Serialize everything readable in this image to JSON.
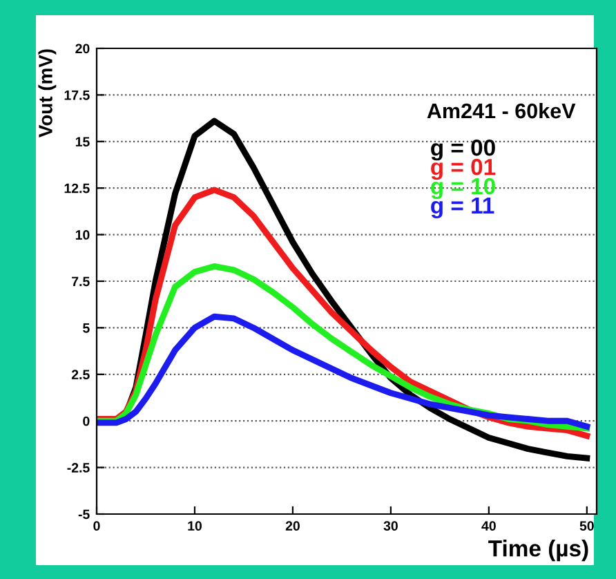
{
  "chart_data": {
    "type": "line",
    "xlabel": "Time (µs)",
    "ylabel": "Vout (mV)",
    "annotations": [
      "Am241 - 60keV"
    ],
    "x": [
      0,
      2,
      3,
      4,
      5,
      6,
      8,
      10,
      12,
      14,
      16,
      18,
      20,
      22,
      24,
      26,
      28,
      30,
      32,
      34,
      36,
      38,
      40,
      42,
      44,
      46,
      48,
      50
    ],
    "series": [
      {
        "name": "g = 00",
        "color": "#000000",
        "values": [
          0,
          0,
          0.4,
          1.8,
          4.6,
          7.5,
          12.2,
          15.3,
          16.1,
          15.4,
          13.6,
          11.6,
          9.6,
          7.9,
          6.4,
          5.0,
          3.6,
          2.3,
          1.4,
          0.7,
          0.1,
          -0.4,
          -0.9,
          -1.2,
          -1.5,
          -1.7,
          -1.9,
          -2.0
        ]
      },
      {
        "name": "g = 01",
        "color": "#ee1c1c",
        "values": [
          0.1,
          0.1,
          0.5,
          1.6,
          3.8,
          6.5,
          10.5,
          12.0,
          12.4,
          12.0,
          11.0,
          9.6,
          8.2,
          7.0,
          5.8,
          4.8,
          3.8,
          2.9,
          2.1,
          1.6,
          1.1,
          0.6,
          0.2,
          -0.1,
          -0.3,
          -0.4,
          -0.5,
          -0.8
        ]
      },
      {
        "name": "g = 10",
        "color": "#22ee22",
        "values": [
          0,
          0,
          0.4,
          1.4,
          3.0,
          4.6,
          7.2,
          8.0,
          8.3,
          8.1,
          7.6,
          6.9,
          6.1,
          5.2,
          4.4,
          3.7,
          3.0,
          2.4,
          1.8,
          1.3,
          0.9,
          0.6,
          0.4,
          0.1,
          0,
          -0.2,
          -0.3,
          -0.4
        ]
      },
      {
        "name": "g = 11",
        "color": "#1c1cee",
        "values": [
          -0.1,
          -0.1,
          0.1,
          0.5,
          1.2,
          2.0,
          3.8,
          5.0,
          5.6,
          5.5,
          5.0,
          4.4,
          3.8,
          3.3,
          2.8,
          2.3,
          1.9,
          1.5,
          1.2,
          0.9,
          0.7,
          0.5,
          0.3,
          0.2,
          0.1,
          0,
          0,
          -0.3
        ]
      }
    ],
    "xlim": [
      0,
      51
    ],
    "xticks": [
      0,
      10,
      20,
      30,
      40,
      50
    ],
    "ylim": [
      -5,
      20
    ],
    "yticks": [
      -5,
      -2.5,
      0,
      2.5,
      5,
      7.5,
      10,
      12.5,
      15,
      17.5,
      20
    ],
    "grid": "y",
    "legend": "top right",
    "marker": "none",
    "line_style": "solid"
  }
}
